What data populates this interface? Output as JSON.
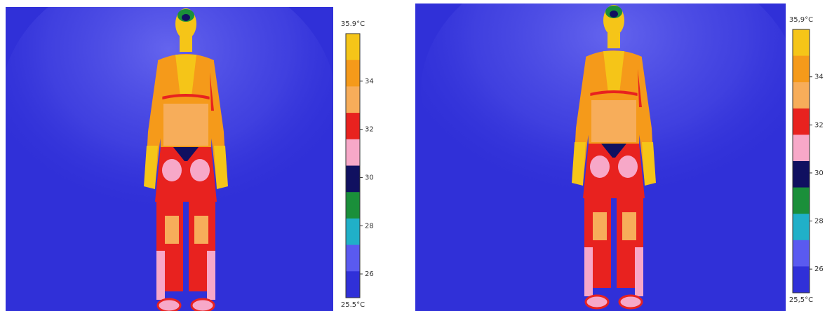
{
  "panels": [
    {
      "scale_max": "35.9°C",
      "scale_min": "25.5°C",
      "ticks": [
        "34",
        "32",
        "30",
        "28",
        "26"
      ]
    },
    {
      "scale_max": "35,9°C",
      "scale_min": "25,5°C",
      "ticks": [
        "34",
        "32",
        "30",
        "28",
        "26"
      ]
    }
  ]
}
